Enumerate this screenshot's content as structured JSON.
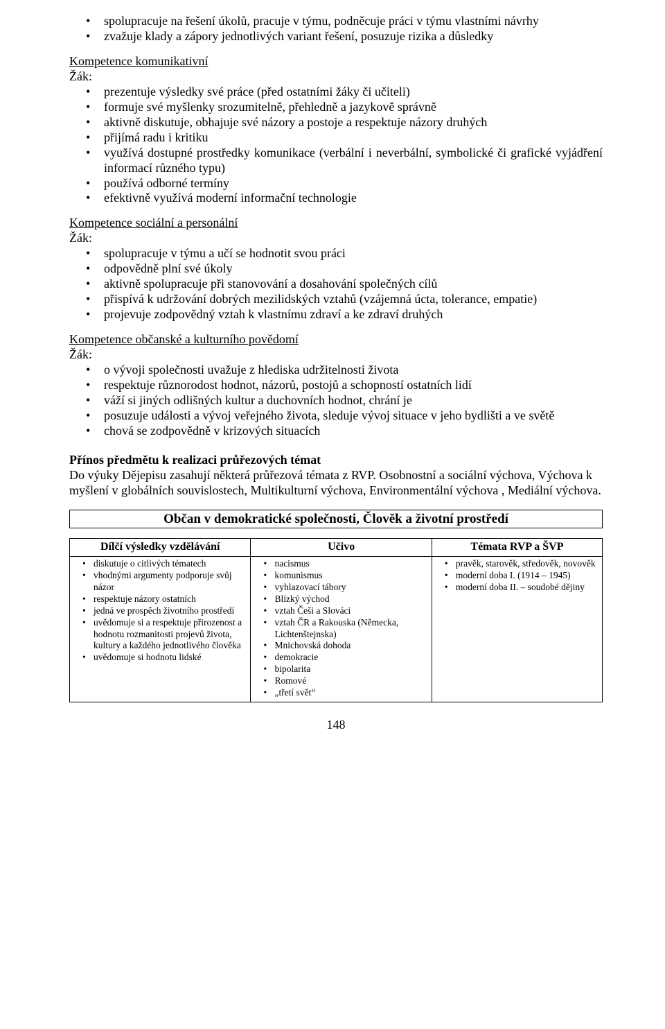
{
  "top_bullets": [
    "spolupracuje na řešení úkolů, pracuje v týmu, podněcuje práci v týmu vlastními návrhy",
    "zvažuje klady a zápory jednotlivých variant řešení, posuzuje rizika a důsledky"
  ],
  "sec_komunikativni": {
    "title": "Kompetence komunikativní",
    "zak": "Žák:",
    "items": [
      "prezentuje výsledky své práce (před ostatními žáky či učiteli)",
      "formuje své myšlenky srozumitelně, přehledně a jazykově správně",
      "aktivně diskutuje, obhajuje své názory a postoje a respektuje názory druhých",
      "přijímá radu i kritiku",
      "využívá dostupné prostředky komunikace (verbální i neverbální, symbolické či grafické vyjádření informací různého typu)",
      "používá odborné termíny",
      "efektivně využívá moderní informační technologie"
    ]
  },
  "sec_socialni": {
    "title": "Kompetence sociální a personální",
    "zak": "Žák:",
    "items": [
      "spolupracuje v týmu a učí se hodnotit svou práci",
      "odpovědně plní své úkoly",
      "aktivně spolupracuje při stanovování a dosahování společných cílů",
      "přispívá k udržování dobrých mezilidských vztahů (vzájemná úcta, tolerance, empatie)",
      "projevuje zodpovědný vztah k vlastnímu zdraví a ke zdraví druhých"
    ]
  },
  "sec_obcanske": {
    "title": "Kompetence občanské a kulturního povědomí",
    "zak": "Žák:",
    "items": [
      "o vývoji společnosti uvažuje z hlediska udržitelnosti života",
      "respektuje různorodost hodnot, názorů, postojů a schopností ostatních lidí",
      "váží si jiných odlišných kultur a duchovních hodnot, chrání je",
      "posuzuje události a vývoj veřejného života, sleduje vývoj situace v jeho bydlišti a ve světě",
      "chová se zodpovědně v krizových situacích"
    ]
  },
  "prinos": {
    "heading": "Přínos předmětu k realizaci průřezových témat",
    "text": "Do výuky Dějepisu zasahují některá průřezová témata z RVP. Osobnostní a sociální výchova, Výchova k myšlení v globálních souvislostech, Multikulturní výchova, Environmentální výchova , Mediální výchova."
  },
  "box_title": "Občan v demokratické společnosti, Člověk a životní prostředí",
  "table": {
    "col_widths": [
      "34%",
      "34%",
      "32%"
    ],
    "headers": [
      "Dílčí výsledky vzdělávání",
      "Učivo",
      "Témata RVP a ŠVP"
    ],
    "col1": [
      "diskutuje o citlivých tématech",
      "vhodnými argumenty podporuje svůj názor",
      "respektuje názory ostatních",
      "jedná ve prospěch životního prostředí",
      "uvědomuje si a respektuje přirozenost a hodnotu rozmanitosti projevů života, kultury a každého jednotlivého člověka",
      "uvědomuje si hodnotu lidské"
    ],
    "col2": [
      "nacismus",
      "komunismus",
      "vyhlazovací tábory",
      "Blízký východ",
      "vztah Češi a Slováci",
      "vztah ČR a Rakouska (Německa, Lichtenštejnska)",
      "Mnichovská dohoda",
      "demokracie",
      "bipolarita",
      "Romové",
      "„třetí svět“"
    ],
    "col3": [
      "pravěk, starověk, středověk, novověk",
      "moderní doba I. (1914 – 1945)",
      "moderní doba II. – soudobé dějiny"
    ]
  },
  "page_number": "148"
}
